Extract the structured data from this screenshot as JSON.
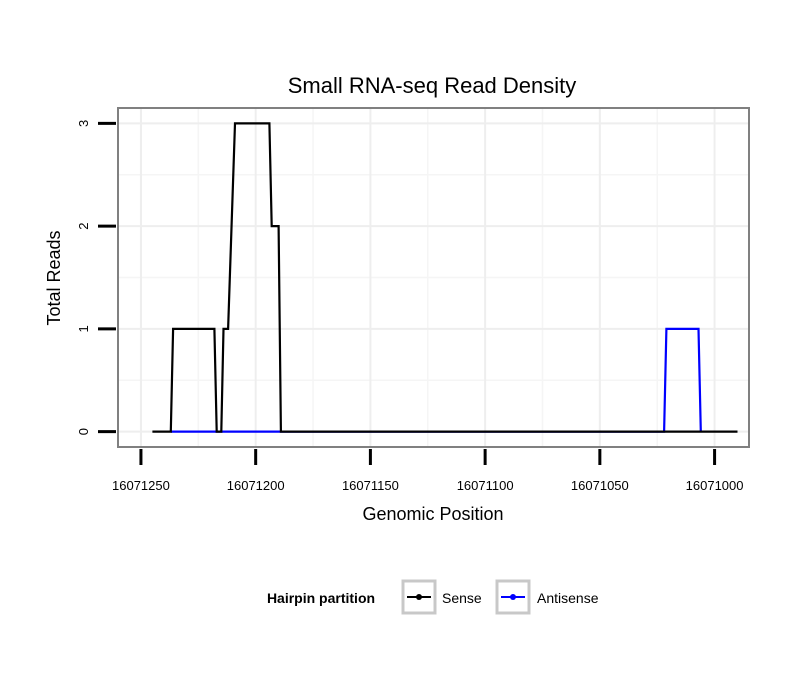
{
  "chart_data": {
    "type": "line",
    "title": "Small RNA-seq Read Density",
    "xlabel": "Genomic Position",
    "ylabel": "Total Reads",
    "xlim": [
      16071260,
      16070985
    ],
    "x_reversed": true,
    "ylim": [
      -0.15,
      3.15
    ],
    "x_ticks": [
      16071250,
      16071200,
      16071150,
      16071100,
      16071050,
      16071000
    ],
    "x_tick_labels": [
      "16071250",
      "16071200",
      "16071150",
      "16071100",
      "16071050",
      "16071000"
    ],
    "y_ticks": [
      0,
      1,
      2,
      3
    ],
    "y_tick_labels": [
      "0",
      "1",
      "2",
      "3"
    ],
    "grid": true,
    "legend": {
      "title": "Hairpin partition",
      "position": "bottom"
    },
    "series": [
      {
        "name": "Sense",
        "color": "#000000",
        "x": [
          16071245,
          16071237,
          16071236,
          16071218,
          16071217,
          16071215,
          16071214,
          16071212,
          16071209,
          16071194,
          16071193,
          16071190,
          16071189,
          16070990
        ],
        "y": [
          0,
          0,
          1,
          1,
          0,
          0,
          1,
          1,
          3,
          3,
          2,
          2,
          0,
          0
        ]
      },
      {
        "name": "Antisense",
        "color": "#0000ff",
        "x": [
          16071237,
          16071189,
          16071022,
          16071021,
          16071007,
          16071006
        ],
        "y": [
          0,
          0,
          0,
          1,
          1,
          0
        ]
      }
    ]
  }
}
